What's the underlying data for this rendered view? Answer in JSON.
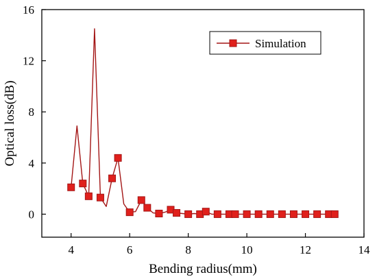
{
  "chart_data": {
    "type": "line",
    "xlabel": "Bending radius(mm)",
    "ylabel": "Optical loss(dB)",
    "xlim": [
      3,
      14
    ],
    "ylim": [
      -1.8,
      16
    ],
    "x_ticks": [
      4,
      6,
      8,
      10,
      12,
      14
    ],
    "y_ticks": [
      0,
      4,
      8,
      12,
      16
    ],
    "grid": false,
    "legend_position": "top-right",
    "series": [
      {
        "name": "Simulation",
        "color": "#a31515",
        "marker_color": "#e0201c",
        "marker": "square",
        "line_x": [
          4.0,
          4.2,
          4.4,
          4.6,
          4.8,
          5.0,
          5.2,
          5.4,
          5.6,
          5.8,
          6.0,
          6.2,
          6.4,
          6.6,
          6.8,
          7.0,
          7.2,
          7.4,
          7.6,
          7.8,
          8.0,
          8.2,
          8.4,
          8.6,
          8.8,
          9.0,
          9.2,
          9.4,
          9.6,
          9.8,
          10.0,
          10.2,
          10.4,
          10.6,
          10.8,
          11.0,
          11.2,
          11.4,
          11.6,
          11.8,
          12.0,
          12.2,
          12.4,
          12.6,
          12.8,
          13.0
        ],
        "line_y": [
          2.1,
          6.9,
          2.4,
          1.4,
          14.5,
          1.3,
          0.6,
          2.8,
          4.4,
          0.8,
          0.15,
          0.2,
          1.1,
          0.5,
          0.1,
          0.05,
          0.15,
          0.35,
          0.1,
          0.05,
          0.0,
          0.05,
          0.0,
          0.2,
          0.0,
          0.0,
          0.0,
          0.0,
          0.0,
          0.0,
          0.0,
          0.0,
          0.0,
          0.0,
          0.0,
          0.0,
          0.0,
          0.0,
          0.0,
          0.0,
          0.0,
          0.0,
          0.0,
          0.0,
          0.0,
          0.0
        ],
        "marker_x": [
          4.0,
          4.4,
          4.6,
          5.0,
          5.4,
          5.6,
          6.0,
          6.4,
          6.6,
          7.0,
          7.4,
          7.6,
          8.0,
          8.4,
          8.6,
          9.0,
          9.4,
          9.6,
          10.0,
          10.4,
          10.8,
          11.2,
          11.6,
          12.0,
          12.4,
          12.8,
          13.0
        ],
        "marker_y": [
          2.1,
          2.4,
          1.4,
          1.3,
          2.8,
          4.4,
          0.15,
          1.1,
          0.5,
          0.05,
          0.35,
          0.1,
          0.0,
          0.0,
          0.2,
          0.0,
          0.0,
          0.0,
          0.0,
          0.0,
          0.0,
          0.0,
          0.0,
          0.0,
          0.0,
          0.0,
          0.0
        ]
      }
    ]
  }
}
